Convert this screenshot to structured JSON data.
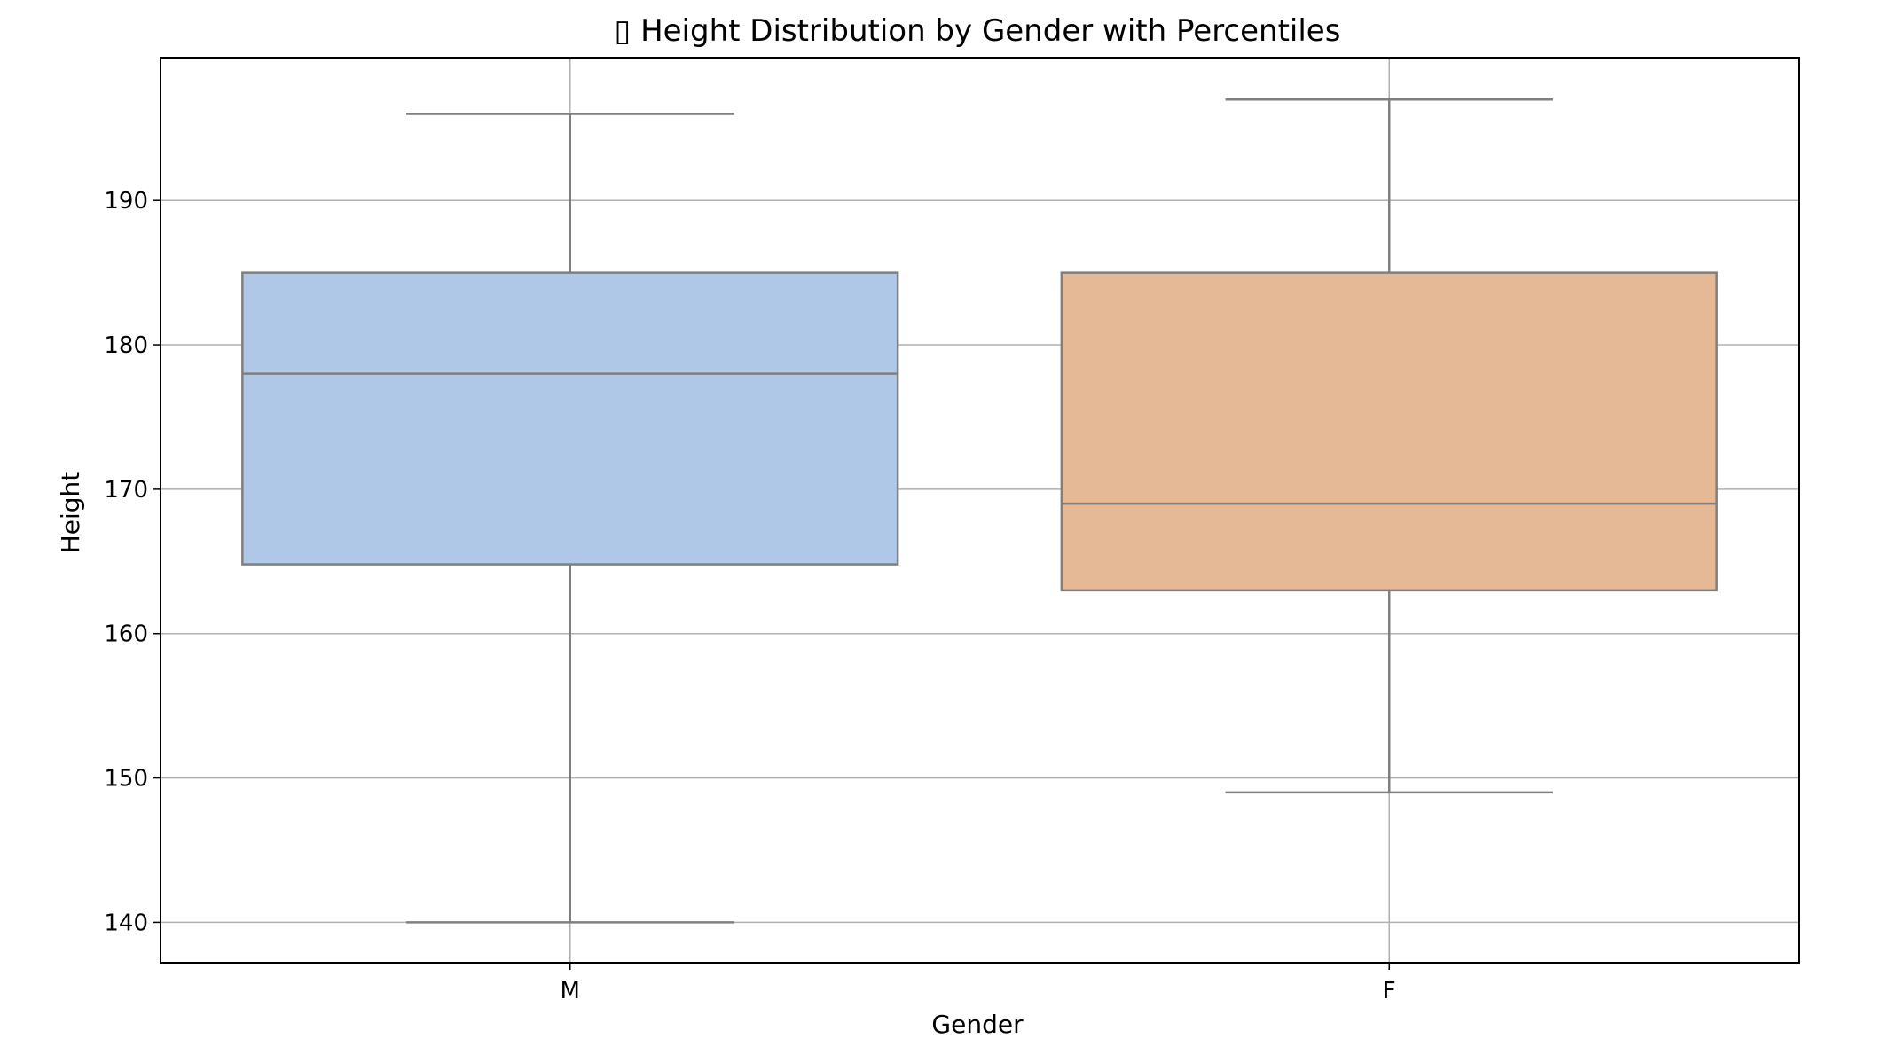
{
  "chart_data": {
    "type": "box",
    "title": "▯ Height Distribution by Gender with Percentiles",
    "xlabel": "Gender",
    "ylabel": "Height",
    "ylim": [
      137.2,
      199.9
    ],
    "yticks": [
      140,
      150,
      160,
      170,
      180,
      190
    ],
    "grid": true,
    "categories": [
      "M",
      "F"
    ],
    "boxes": [
      {
        "category": "M",
        "min": 140,
        "q1": 164.8,
        "median": 178,
        "q3": 185,
        "max": 196,
        "color": "#b0c8e8"
      },
      {
        "category": "F",
        "min": 149,
        "q1": 163,
        "median": 169,
        "q3": 185,
        "max": 197,
        "color": "#e5b896"
      }
    ]
  }
}
